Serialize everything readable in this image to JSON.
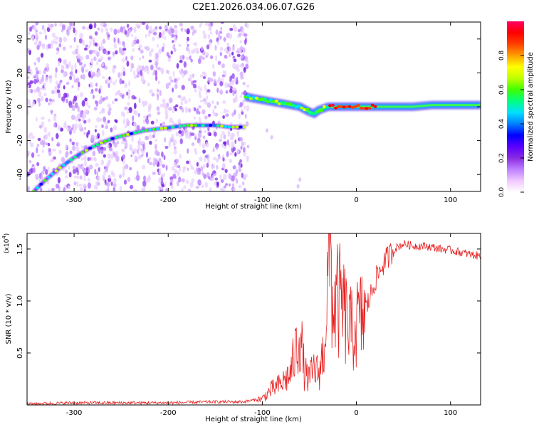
{
  "title": "C2E1.2026.034.06.07.G26",
  "chart_data": [
    {
      "type": "heatmap",
      "title": "C2E1.2026.034.06.07.G26",
      "xlabel": "Height of straight line (km)",
      "ylabel": "Frequency (Hz)",
      "xlim": [
        -350,
        132
      ],
      "ylim": [
        -50,
        50
      ],
      "x_ticks": [
        -300,
        -200,
        -100,
        0,
        100
      ],
      "y_ticks": [
        -40,
        -20,
        0,
        20,
        40
      ],
      "colorbar": {
        "label": "Normalized spectral amplitude",
        "range": [
          0,
          1
        ],
        "ticks": [
          0.0,
          0.2,
          0.4,
          0.6,
          0.8
        ],
        "colors": [
          "#ffffff",
          "#f0c8ff",
          "#c080ff",
          "#8a2be2",
          "#5a00ff",
          "#0000ff",
          "#0080ff",
          "#00e0ff",
          "#00ff80",
          "#40ff00",
          "#c0ff00",
          "#ffff00",
          "#ffa000",
          "#ff4000",
          "#ff0000",
          "#ff0060"
        ]
      },
      "series": [
        {
          "name": "",
          "x": [
            -343,
            -330,
            -315,
            -300,
            -285,
            -270,
            -255,
            -240,
            -225,
            -210,
            -195,
            -180,
            -165,
            -150,
            -135,
            -118
          ],
          "y": [
            -50,
            -43,
            -36,
            -30,
            -25,
            -21,
            -18,
            -16,
            -14,
            -13,
            -12,
            -11,
            -11,
            -11,
            -12,
            -12
          ]
        },
        {
          "name": "",
          "x": [
            -118,
            -110,
            -100,
            -90,
            -80,
            -70,
            -60,
            -50,
            -45,
            -40,
            -35,
            -30,
            -20,
            -10,
            0,
            10,
            20,
            40,
            60,
            80,
            100,
            120,
            132
          ],
          "y": [
            6,
            5,
            4,
            3,
            2,
            1,
            0,
            -3,
            -4,
            -2,
            -1,
            0,
            0,
            0,
            0,
            0,
            0,
            0,
            0,
            1,
            1,
            1,
            1
          ]
        }
      ]
    },
    {
      "type": "line",
      "title": "",
      "xlabel": "Height of straight line (km)",
      "ylabel": "SNR (10 * v/v)",
      "multiplier": "(x10",
      "multiplier_exp": "4",
      "multiplier_close": ")",
      "xlim": [
        -350,
        132
      ],
      "ylim": [
        0,
        1.65
      ],
      "x_ticks": [
        -300,
        -200,
        -100,
        0,
        100
      ],
      "y_ticks": [
        0.5,
        1.0,
        1.5
      ],
      "y_tick_labels": [
        "0.5",
        "1.0",
        "1.5"
      ],
      "color": "#e82020",
      "series": [
        {
          "name": "",
          "x": [
            -350,
            -300,
            -250,
            -200,
            -150,
            -120,
            -100,
            -90,
            -80,
            -70,
            -65,
            -60,
            -55,
            -50,
            -45,
            -40,
            -35,
            -30,
            -28,
            -25,
            -20,
            -15,
            -10,
            -5,
            0,
            5,
            10,
            15,
            20,
            30,
            40,
            50,
            60,
            70,
            80,
            90,
            100,
            110,
            120,
            132
          ],
          "y": [
            0.01,
            0.02,
            0.02,
            0.02,
            0.03,
            0.03,
            0.06,
            0.15,
            0.2,
            0.3,
            0.5,
            0.7,
            0.3,
            0.25,
            0.35,
            0.3,
            0.5,
            1.2,
            1.65,
            0.9,
            1.0,
            0.95,
            0.8,
            0.7,
            0.78,
            0.82,
            0.92,
            1.05,
            1.2,
            1.38,
            1.5,
            1.55,
            1.53,
            1.53,
            1.52,
            1.5,
            1.49,
            1.47,
            1.45,
            1.43
          ]
        }
      ]
    }
  ]
}
